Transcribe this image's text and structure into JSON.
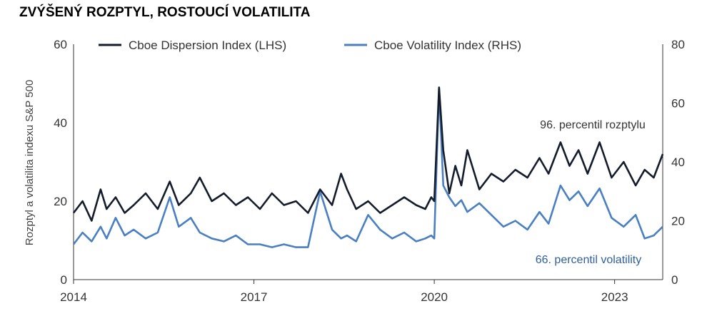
{
  "chart_data": {
    "type": "line",
    "title": "ZVÝŠENÝ ROZPTYL, ROSTOUCÍ VOLATILITA",
    "ylabel": "Rozptyl a volatilita indexu S&P 500",
    "x_ticks": [
      "2014",
      "2017",
      "2020",
      "2023"
    ],
    "x_tick_values": [
      2014,
      2017,
      2020,
      2023
    ],
    "xlim": [
      2014,
      2023.8
    ],
    "y_left": {
      "range": [
        0,
        60
      ],
      "ticks": [
        "0",
        "20",
        "40",
        "60"
      ]
    },
    "y_right": {
      "range": [
        0,
        80
      ],
      "ticks": [
        "0",
        "20",
        "40",
        "60",
        "80"
      ]
    },
    "legend_position": "top",
    "series": [
      {
        "name": "Cboe Dispersion Index (LHS)",
        "axis": "left",
        "color": "#141c2c",
        "x": [
          2014.0,
          2014.15,
          2014.3,
          2014.45,
          2014.55,
          2014.7,
          2014.85,
          2015.0,
          2015.2,
          2015.4,
          2015.6,
          2015.75,
          2015.95,
          2016.1,
          2016.3,
          2016.5,
          2016.7,
          2016.9,
          2017.1,
          2017.3,
          2017.5,
          2017.7,
          2017.9,
          2018.1,
          2018.3,
          2018.45,
          2018.55,
          2018.7,
          2018.9,
          2019.1,
          2019.3,
          2019.5,
          2019.7,
          2019.85,
          2019.95,
          2020.0,
          2020.08,
          2020.15,
          2020.25,
          2020.35,
          2020.45,
          2020.55,
          2020.75,
          2020.95,
          2021.15,
          2021.35,
          2021.55,
          2021.75,
          2021.9,
          2022.1,
          2022.25,
          2022.4,
          2022.55,
          2022.75,
          2022.95,
          2023.15,
          2023.35,
          2023.5,
          2023.65,
          2023.8
        ],
        "values": [
          17,
          20,
          15,
          23,
          18,
          21,
          17,
          19,
          22,
          18,
          25,
          19,
          22,
          26,
          20,
          22,
          19,
          21,
          18,
          22,
          19,
          20,
          17,
          23,
          19,
          27,
          23,
          18,
          20,
          17,
          19,
          21,
          19,
          18,
          21,
          20,
          49,
          33,
          22,
          29,
          24,
          33,
          23,
          27,
          25,
          28,
          26,
          31,
          27,
          35,
          29,
          33,
          27,
          35,
          26,
          30,
          24,
          28,
          26,
          32
        ]
      },
      {
        "name": "Cboe Volatility Index (RHS)",
        "axis": "right",
        "color": "#4a7fc1",
        "x": [
          2014.0,
          2014.15,
          2014.3,
          2014.45,
          2014.55,
          2014.7,
          2014.85,
          2015.0,
          2015.2,
          2015.4,
          2015.6,
          2015.75,
          2015.95,
          2016.1,
          2016.3,
          2016.5,
          2016.7,
          2016.9,
          2017.1,
          2017.3,
          2017.5,
          2017.7,
          2017.9,
          2018.1,
          2018.3,
          2018.45,
          2018.55,
          2018.7,
          2018.9,
          2019.1,
          2019.3,
          2019.5,
          2019.7,
          2019.85,
          2019.95,
          2020.0,
          2020.08,
          2020.15,
          2020.25,
          2020.35,
          2020.45,
          2020.55,
          2020.75,
          2020.95,
          2021.15,
          2021.35,
          2021.55,
          2021.75,
          2021.9,
          2022.1,
          2022.25,
          2022.4,
          2022.55,
          2022.75,
          2022.95,
          2023.15,
          2023.35,
          2023.5,
          2023.65,
          2023.8
        ],
        "values": [
          12,
          16,
          13,
          18,
          14,
          21,
          15,
          17,
          14,
          16,
          28,
          18,
          21,
          16,
          14,
          13,
          15,
          12,
          12,
          11,
          12,
          11,
          11,
          30,
          17,
          14,
          15,
          13,
          22,
          17,
          14,
          16,
          13,
          14,
          15,
          14,
          65,
          32,
          28,
          25,
          27,
          23,
          26,
          22,
          18,
          20,
          17,
          23,
          19,
          32,
          27,
          30,
          25,
          31,
          21,
          18,
          22,
          14,
          15,
          18
        ]
      }
    ],
    "annotations": [
      {
        "text": "96. percentil rozptylu",
        "color": "#333333"
      },
      {
        "text": "66. percentil volatility",
        "color": "#2e5f9e"
      }
    ]
  }
}
